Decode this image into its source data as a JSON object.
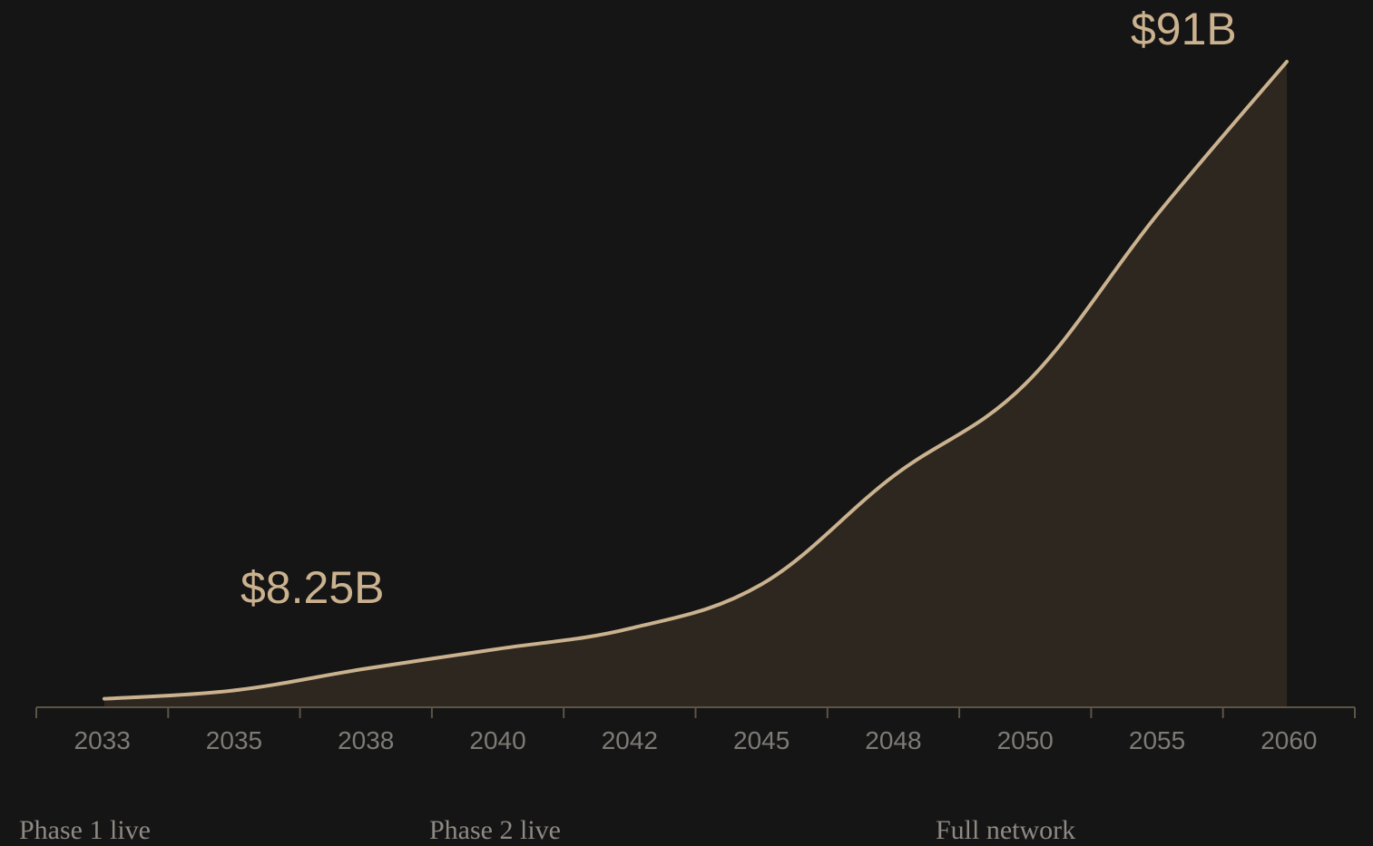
{
  "chart_data": {
    "type": "area",
    "categories": [
      "2033",
      "2035",
      "2038",
      "2040",
      "2042",
      "2045",
      "2048",
      "2050",
      "2055",
      "2060"
    ],
    "series": [
      {
        "values": [
          0.3,
          1.5,
          4.6,
          7.4,
          10.3,
          16.6,
          32.0,
          45.1,
          69.2,
          91
        ]
      }
    ],
    "annotations": [
      {
        "text": "$8.25B"
      },
      {
        "text": "$91B"
      }
    ],
    "ylim": [
      0,
      91
    ],
    "grid": false,
    "colors": {
      "background": "#151515",
      "line": "#cbb28f",
      "fill": "#2d2720",
      "axis": "#5c5444",
      "tick_text": "#7d7b76",
      "annotation_text": "#cbb28f"
    }
  },
  "phases": [
    {
      "label": "Phase 1 live"
    },
    {
      "label": "Phase 2 live"
    },
    {
      "label": "Full network"
    }
  ]
}
